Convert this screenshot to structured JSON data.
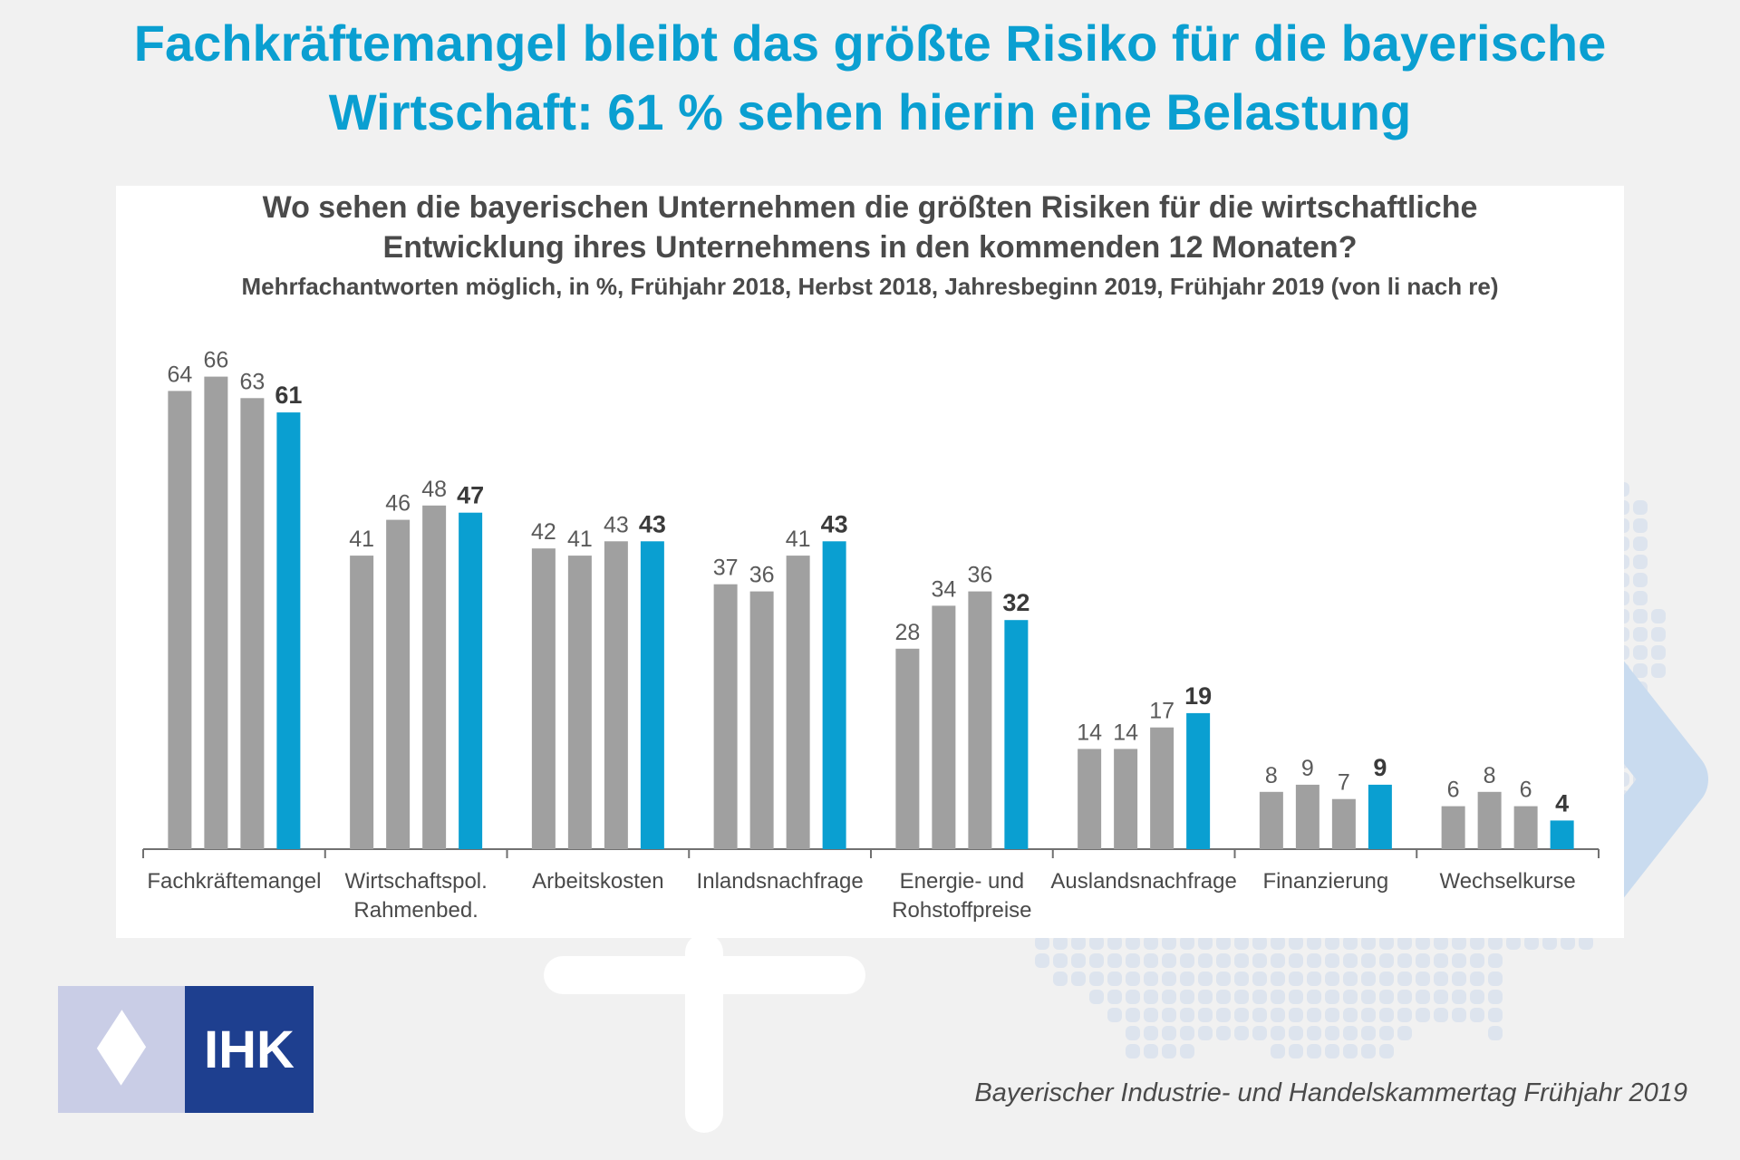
{
  "headline": {
    "line1": "Fachkräftemangel bleibt das größte Risiko für die bayerische",
    "line2": "Wirtschaft: 61 % sehen hierin eine Belastung"
  },
  "chart_data": {
    "type": "bar",
    "title_line1": "Wo sehen die bayerischen Unternehmen die größten Risiken für die wirtschaftliche",
    "title_line2": "Entwicklung ihres Unternehmens in den kommenden 12 Monaten?",
    "subtitle": "Mehrfachantworten möglich, in %, Frühjahr 2018, Herbst 2018, Jahresbeginn 2019, Frühjahr 2019 (von li nach re)",
    "categories": [
      [
        "Fachkräftemangel"
      ],
      [
        "Wirtschaftspol.",
        "Rahmenbed."
      ],
      [
        "Arbeitskosten"
      ],
      [
        "Inlandsnachfrage"
      ],
      [
        "Energie- und",
        "Rohstoffpreise"
      ],
      [
        "Auslandsnachfrage"
      ],
      [
        "Finanzierung"
      ],
      [
        "Wechselkurse"
      ]
    ],
    "series": [
      {
        "values": [
          64,
          41,
          42,
          37,
          28,
          14,
          8,
          6
        ],
        "color": "#a0a0a0"
      },
      {
        "values": [
          66,
          46,
          41,
          36,
          34,
          14,
          9,
          8
        ],
        "color": "#a0a0a0"
      },
      {
        "values": [
          63,
          48,
          43,
          41,
          36,
          17,
          7,
          6
        ],
        "color": "#a0a0a0"
      },
      {
        "values": [
          61,
          47,
          43,
          43,
          32,
          19,
          9,
          4
        ],
        "color": "#0a9fd1"
      }
    ],
    "ylim": [
      0,
      70
    ],
    "grid": false,
    "legend": "none"
  },
  "logo": {
    "text": "IHK"
  },
  "source": "Bayerischer Industrie- und Handelskammertag Frühjahr 2019",
  "colors": {
    "accent": "#0a9fd1",
    "bar_gray": "#a0a0a0",
    "text": "#4a4a4a",
    "logo_navy": "#1e3f8f",
    "logo_light": "#c9cde6"
  }
}
